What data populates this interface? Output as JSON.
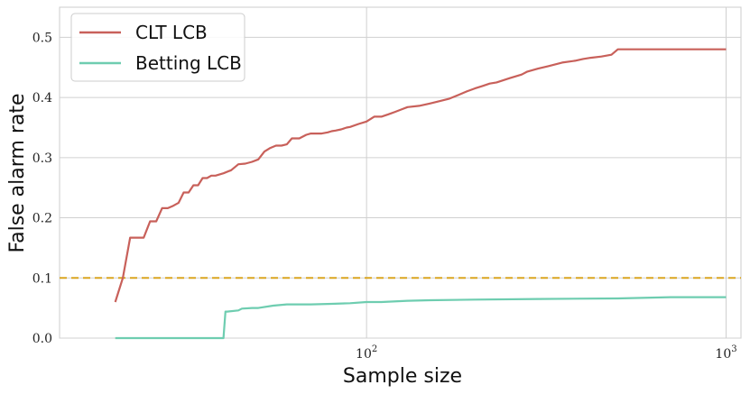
{
  "chart_data": {
    "type": "line",
    "xscale": "log",
    "xlim": [
      14,
      1100
    ],
    "ylim": [
      0,
      0.55
    ],
    "xlabel": "Sample size",
    "ylabel": "False alarm rate",
    "xticks": [
      {
        "value": 100,
        "base": "10",
        "exp": "2"
      },
      {
        "value": 1000,
        "base": "10",
        "exp": "3"
      }
    ],
    "yticks": [
      {
        "value": 0.0,
        "label": "0.0"
      },
      {
        "value": 0.1,
        "label": "0.1"
      },
      {
        "value": 0.2,
        "label": "0.2"
      },
      {
        "value": 0.3,
        "label": "0.3"
      },
      {
        "value": 0.4,
        "label": "0.4"
      },
      {
        "value": 0.5,
        "label": "0.5"
      }
    ],
    "grid": true,
    "legend_position": "top-left",
    "reference_line": {
      "y": 0.1,
      "color": "#DAA520",
      "style": "dashed"
    },
    "series": [
      {
        "name": "CLT LCB",
        "color": "#C8605A",
        "x": [
          20,
          21,
          22,
          23,
          24,
          25,
          26,
          27,
          28,
          29,
          30,
          31,
          32,
          33,
          34,
          35,
          36,
          37,
          38,
          40,
          42,
          44,
          46,
          48,
          50,
          52,
          54,
          56,
          58,
          60,
          62,
          65,
          68,
          70,
          72,
          75,
          78,
          80,
          82,
          85,
          88,
          90,
          95,
          100,
          105,
          110,
          115,
          120,
          125,
          130,
          140,
          150,
          160,
          170,
          180,
          190,
          200,
          210,
          220,
          230,
          250,
          270,
          280,
          300,
          320,
          350,
          380,
          400,
          420,
          450,
          480,
          500,
          550,
          600,
          700,
          800,
          900,
          1000
        ],
        "y": [
          0.06,
          0.1,
          0.167,
          0.167,
          0.167,
          0.194,
          0.194,
          0.216,
          0.216,
          0.22,
          0.225,
          0.242,
          0.242,
          0.254,
          0.254,
          0.266,
          0.266,
          0.27,
          0.27,
          0.274,
          0.279,
          0.289,
          0.29,
          0.293,
          0.297,
          0.31,
          0.316,
          0.32,
          0.32,
          0.322,
          0.332,
          0.332,
          0.338,
          0.34,
          0.34,
          0.34,
          0.342,
          0.344,
          0.345,
          0.347,
          0.35,
          0.351,
          0.356,
          0.36,
          0.368,
          0.368,
          0.372,
          0.376,
          0.38,
          0.384,
          0.386,
          0.39,
          0.394,
          0.398,
          0.404,
          0.41,
          0.415,
          0.419,
          0.423,
          0.425,
          0.432,
          0.438,
          0.443,
          0.448,
          0.452,
          0.458,
          0.461,
          0.464,
          0.466,
          0.468,
          0.471,
          0.48,
          0.48,
          0.48,
          0.48,
          0.48,
          0.48,
          0.48
        ]
      },
      {
        "name": "Betting LCB",
        "color": "#6ECDB0",
        "x": [
          20,
          30,
          38,
          40,
          40.5,
          41,
          44,
          45,
          48,
          50,
          55,
          60,
          70,
          80,
          90,
          100,
          110,
          130,
          150,
          200,
          300,
          500,
          700,
          1000
        ],
        "y": [
          0.0,
          0.0,
          0.0,
          0.0,
          0.044,
          0.044,
          0.046,
          0.049,
          0.05,
          0.05,
          0.054,
          0.056,
          0.056,
          0.057,
          0.058,
          0.06,
          0.06,
          0.062,
          0.063,
          0.064,
          0.065,
          0.066,
          0.068,
          0.068
        ]
      }
    ]
  }
}
